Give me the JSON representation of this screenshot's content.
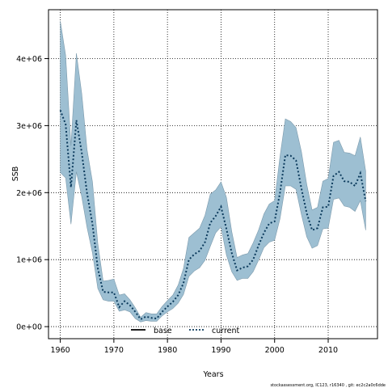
{
  "chart_data": {
    "type": "area",
    "xlabel": "Years",
    "ylabel": "SSB",
    "xlim": [
      1957.8,
      2019.2
    ],
    "ylim": [
      -180000,
      4730000
    ],
    "x_ticks": [
      1960,
      1970,
      1980,
      1990,
      2000,
      2010
    ],
    "x_tick_labels": [
      "1960",
      "1970",
      "1980",
      "1990",
      "2000",
      "2010"
    ],
    "y_ticks": [
      0,
      1000000,
      2000000,
      3000000,
      4000000
    ],
    "y_tick_labels": [
      "0e+00",
      "1e+06",
      "2e+06",
      "3e+06",
      "4e+06"
    ],
    "grid": true,
    "legend_position": "bottom-center",
    "colors": {
      "band": "#9dbfd2",
      "band_edge": "#7c9aac",
      "current": "#0b3a5c",
      "base": "#000000"
    },
    "x": [
      1960,
      1961,
      1962,
      1963,
      1964,
      1965,
      1966,
      1967,
      1968,
      1969,
      1970,
      1971,
      1972,
      1973,
      1974,
      1975,
      1976,
      1977,
      1978,
      1979,
      1980,
      1981,
      1982,
      1983,
      1984,
      1985,
      1986,
      1987,
      1988,
      1989,
      1990,
      1991,
      1992,
      1993,
      1994,
      1995,
      1996,
      1997,
      1998,
      1999,
      2000,
      2001,
      2002,
      2003,
      2004,
      2005,
      2006,
      2007,
      2008,
      2009,
      2010,
      2011,
      2012,
      2013,
      2014,
      2015,
      2016,
      2017
    ],
    "series": [
      {
        "name": "current",
        "style": "dotted",
        "values": [
          3230000,
          3020000,
          2080000,
          3080000,
          2600000,
          1990000,
          1530000,
          870000,
          520000,
          510000,
          510000,
          290000,
          380000,
          320000,
          220000,
          110000,
          150000,
          130000,
          120000,
          220000,
          300000,
          370000,
          470000,
          650000,
          1000000,
          1080000,
          1130000,
          1260000,
          1550000,
          1650000,
          1790000,
          1460000,
          1100000,
          840000,
          880000,
          900000,
          1000000,
          1210000,
          1400000,
          1540000,
          1570000,
          2000000,
          2560000,
          2550000,
          2480000,
          2060000,
          1690000,
          1440000,
          1470000,
          1780000,
          1790000,
          2250000,
          2310000,
          2170000,
          2160000,
          2100000,
          2290000,
          1870000
        ]
      },
      {
        "name": "base",
        "style": "solid",
        "values": [
          3230000,
          3020000,
          2080000,
          3080000,
          2600000,
          1990000,
          1530000,
          870000,
          520000,
          510000,
          510000,
          290000,
          380000,
          320000,
          220000,
          110000,
          150000,
          130000,
          120000,
          220000,
          300000,
          370000,
          470000,
          650000,
          1000000,
          1080000,
          1130000,
          1260000,
          1550000,
          1650000,
          1790000,
          1460000,
          1100000,
          840000,
          880000,
          900000,
          1000000,
          1210000,
          1400000,
          1540000,
          1570000,
          2000000,
          2560000,
          2550000,
          2480000,
          2060000,
          1690000,
          1440000,
          1470000,
          1780000,
          1790000,
          2250000,
          2310000,
          2170000,
          2160000,
          2100000,
          2290000,
          1870000
        ]
      }
    ],
    "band_upper": [
      4560000,
      4050000,
      2700000,
      4080000,
      3480000,
      2640000,
      2160000,
      1240000,
      680000,
      690000,
      710000,
      470000,
      490000,
      400000,
      280000,
      140000,
      210000,
      190000,
      190000,
      300000,
      390000,
      470000,
      620000,
      870000,
      1330000,
      1400000,
      1470000,
      1660000,
      1980000,
      2040000,
      2160000,
      1930000,
      1420000,
      1030000,
      1070000,
      1090000,
      1250000,
      1440000,
      1680000,
      1830000,
      1880000,
      2540000,
      3100000,
      3060000,
      2970000,
      2610000,
      2120000,
      1740000,
      1780000,
      2170000,
      2210000,
      2750000,
      2780000,
      2600000,
      2590000,
      2550000,
      2830000,
      2320000
    ],
    "band_lower": [
      2300000,
      2220000,
      1530000,
      2310000,
      1940000,
      1480000,
      1100000,
      570000,
      400000,
      380000,
      380000,
      230000,
      250000,
      220000,
      120000,
      70000,
      90000,
      80000,
      80000,
      160000,
      220000,
      270000,
      350000,
      480000,
      750000,
      830000,
      880000,
      990000,
      1200000,
      1400000,
      1490000,
      1070000,
      820000,
      690000,
      720000,
      720000,
      820000,
      990000,
      1180000,
      1260000,
      1290000,
      1610000,
      2100000,
      2100000,
      2050000,
      1670000,
      1340000,
      1170000,
      1210000,
      1460000,
      1470000,
      1900000,
      1920000,
      1800000,
      1780000,
      1720000,
      1880000,
      1440000
    ]
  },
  "footer": "stockassessment.org, IC123, r16340 , git: ec2c2a0c6dde"
}
